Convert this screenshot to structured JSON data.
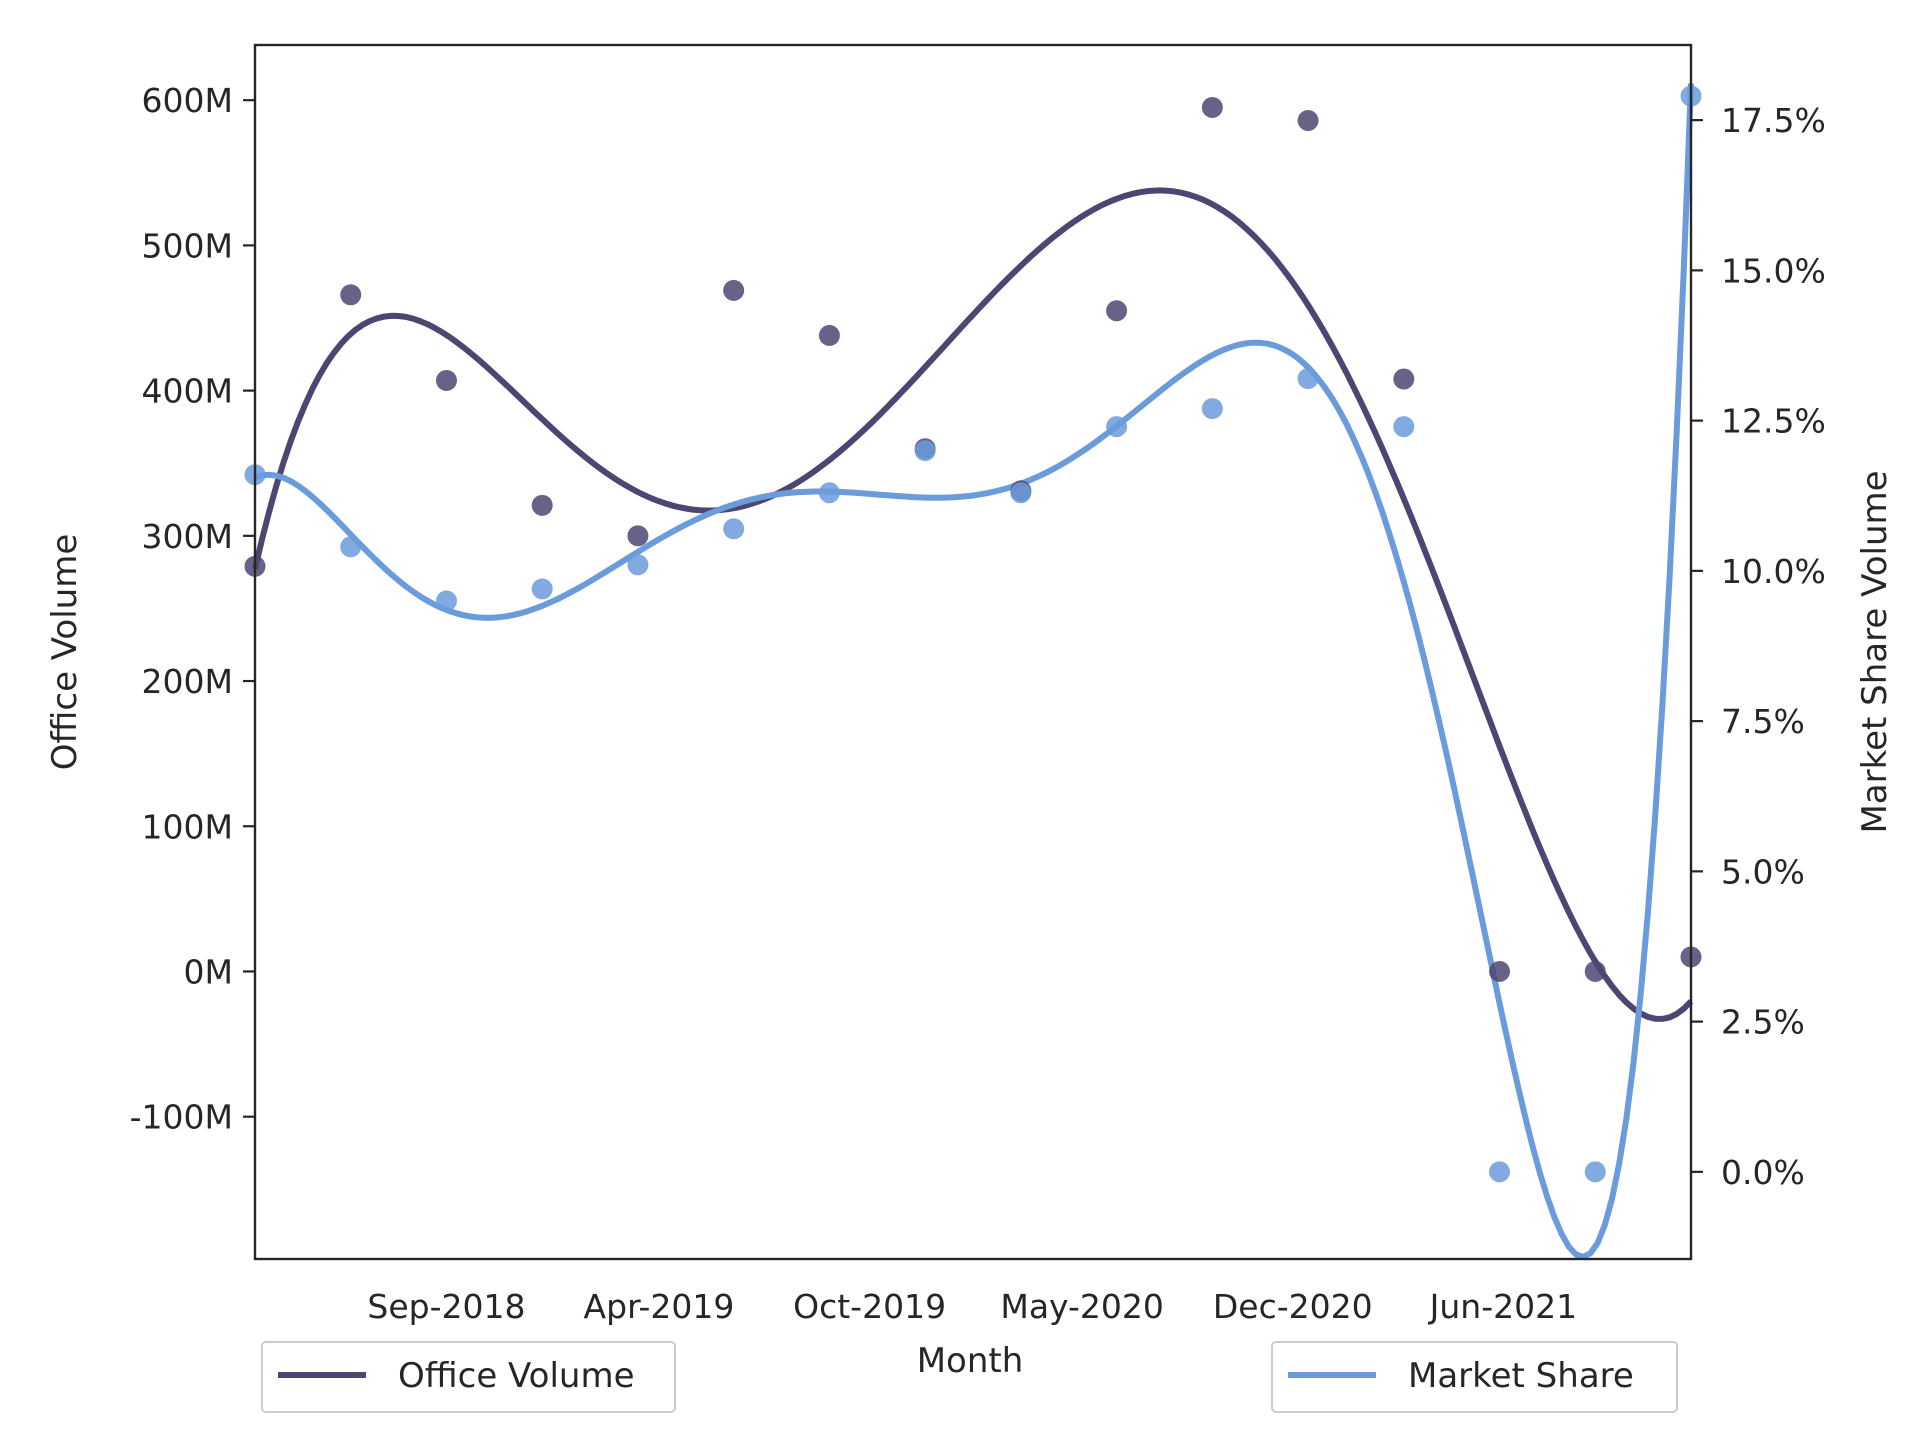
{
  "chart_data": {
    "type": "scatter",
    "xlabel": "Month",
    "ylabel_left": "Office Volume",
    "ylabel_right": "Market Share Volume",
    "x_tick_labels": [
      "Sep-2018",
      "Apr-2019",
      "Oct-2019",
      "May-2020",
      "Dec-2020",
      "Jun-2021"
    ],
    "y_left_tick_labels": [
      "-100M",
      "0M",
      "100M",
      "200M",
      "300M",
      "400M",
      "500M",
      "600M"
    ],
    "y_left_ticks": [
      -100,
      0,
      100,
      200,
      300,
      400,
      500,
      600
    ],
    "y_left_lim": [
      -198,
      638
    ],
    "y_right_tick_labels": [
      "0.0%",
      "2.5%",
      "5.0%",
      "7.5%",
      "10.0%",
      "12.5%",
      "15.0%",
      "17.5%"
    ],
    "y_right_ticks": [
      0,
      2.5,
      5.0,
      7.5,
      10.0,
      12.5,
      15.0,
      17.5
    ],
    "y_right_lim": [
      -1.45,
      18.75
    ],
    "x_index_lim": [
      0,
      15
    ],
    "x_tick_positions": [
      2,
      4.22,
      6.42,
      8.64,
      10.84,
      13.04
    ],
    "grid": false,
    "series": [
      {
        "name": "Office Volume",
        "axis": "left",
        "color": "#4c4672",
        "x": [
          0,
          1,
          2,
          3,
          4,
          5,
          6,
          7,
          8,
          9,
          10,
          11,
          12,
          13,
          14,
          15
        ],
        "y": [
          279,
          466,
          407,
          321,
          300,
          469,
          438,
          360,
          331,
          455,
          595,
          586,
          408,
          0,
          0,
          10
        ]
      },
      {
        "name": "Market Share",
        "axis": "right",
        "color": "#6a9bdb",
        "x": [
          0,
          1,
          2,
          3,
          4,
          5,
          6,
          7,
          8,
          9,
          10,
          11,
          12,
          13,
          14,
          15
        ],
        "y": [
          11.6,
          10.4,
          9.5,
          9.7,
          10.1,
          10.7,
          11.3,
          12.0,
          11.3,
          12.4,
          12.7,
          13.2,
          12.4,
          0.0,
          0.0,
          17.9
        ]
      }
    ],
    "legend": [
      {
        "label": "Office Volume",
        "placement": "lower-left"
      },
      {
        "label": "Market Share",
        "placement": "lower-right"
      }
    ]
  }
}
